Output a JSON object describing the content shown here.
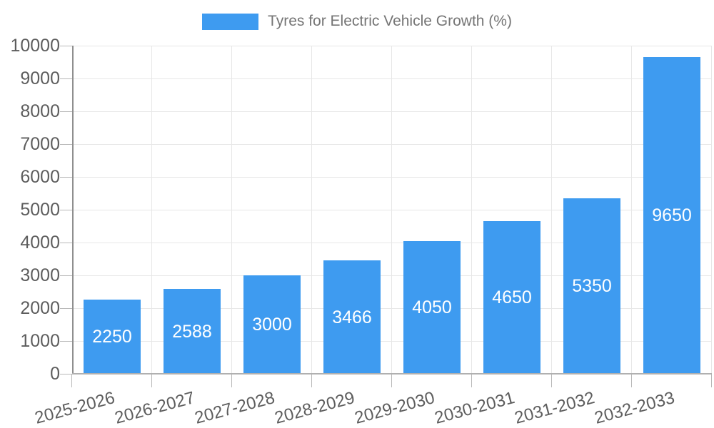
{
  "legend": {
    "label": "Tyres for Electric Vehicle Growth (%)",
    "swatch_color": "#3e9bf0"
  },
  "chart_data": {
    "type": "bar",
    "title": "Tyres for Electric Vehicle Growth (%)",
    "categories": [
      "2025-2026",
      "2026-2027",
      "2027-2028",
      "2028-2029",
      "2029-2030",
      "2030-2031",
      "2031-2032",
      "2032-2033"
    ],
    "series": [
      {
        "name": "Tyres for Electric Vehicle Growth (%)",
        "values": [
          2250,
          2588,
          3000,
          3466,
          4050,
          4650,
          5350,
          9650
        ]
      }
    ],
    "value_labels": [
      "2250",
      "2588",
      "3000",
      "3466",
      "4050",
      "4650",
      "5350",
      "9650"
    ],
    "xlabel": "",
    "ylabel": "",
    "ylim": [
      0,
      10000
    ],
    "ytick_step": 1000,
    "ytick_labels": [
      "0",
      "1000",
      "2000",
      "3000",
      "4000",
      "5000",
      "6000",
      "7000",
      "8000",
      "9000",
      "10000"
    ],
    "grid": true,
    "legend_position": "top",
    "bar_color": "#3e9bf0",
    "value_label_color": "#ffffff",
    "gridline_color": "#e7e7e7",
    "tick_color": "#b8b8b8",
    "axis_line_color": "#8f8f8f",
    "baseline_color": "#b0b0b0",
    "axis_label_color": "#5d5d5d",
    "legend_text_color": "#757575"
  }
}
